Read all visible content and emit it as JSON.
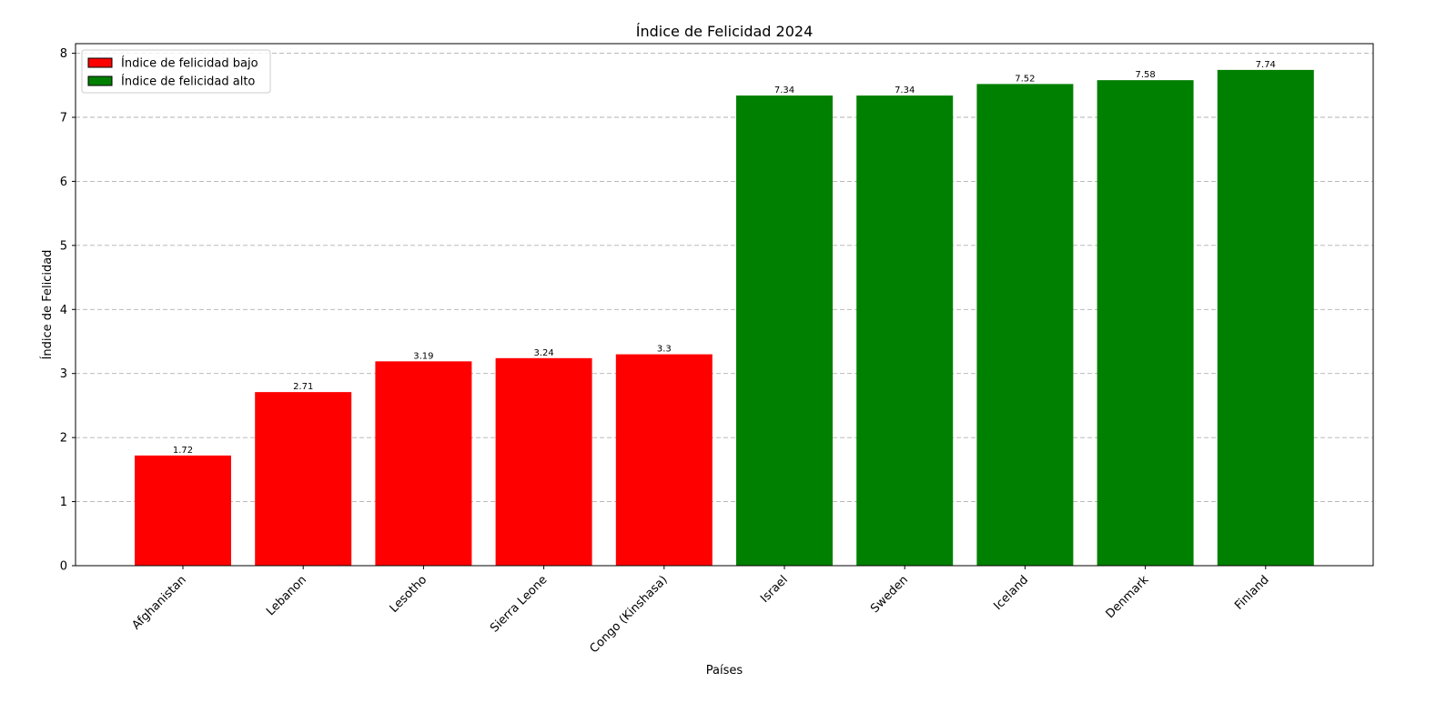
{
  "chart_data": {
    "type": "bar",
    "title": "Índice de Felicidad 2024",
    "xlabel": "Países",
    "ylabel": "Índice de Felicidad",
    "ylim": [
      0,
      8.15
    ],
    "yticks": [
      0,
      1,
      2,
      3,
      4,
      5,
      6,
      7,
      8
    ],
    "grid": "y-dashed",
    "legend_position": "top-left",
    "categories": [
      "Afghanistan",
      "Lebanon",
      "Lesotho",
      "Sierra Leone",
      "Congo (Kinshasa)",
      "Israel",
      "Sweden",
      "Iceland",
      "Denmark",
      "Finland"
    ],
    "values": [
      1.72,
      2.71,
      3.19,
      3.24,
      3.3,
      7.34,
      7.34,
      7.52,
      7.58,
      7.74
    ],
    "value_labels": [
      "1.72",
      "2.71",
      "3.19",
      "3.24",
      "3.3",
      "7.34",
      "7.34",
      "7.52",
      "7.58",
      "7.74"
    ],
    "groups": [
      "low",
      "low",
      "low",
      "low",
      "low",
      "high",
      "high",
      "high",
      "high",
      "high"
    ],
    "legend": [
      {
        "key": "low",
        "label": "Índice de felicidad bajo",
        "color": "#ff0000"
      },
      {
        "key": "high",
        "label": "Índice de felicidad alto",
        "color": "#008000"
      }
    ]
  }
}
